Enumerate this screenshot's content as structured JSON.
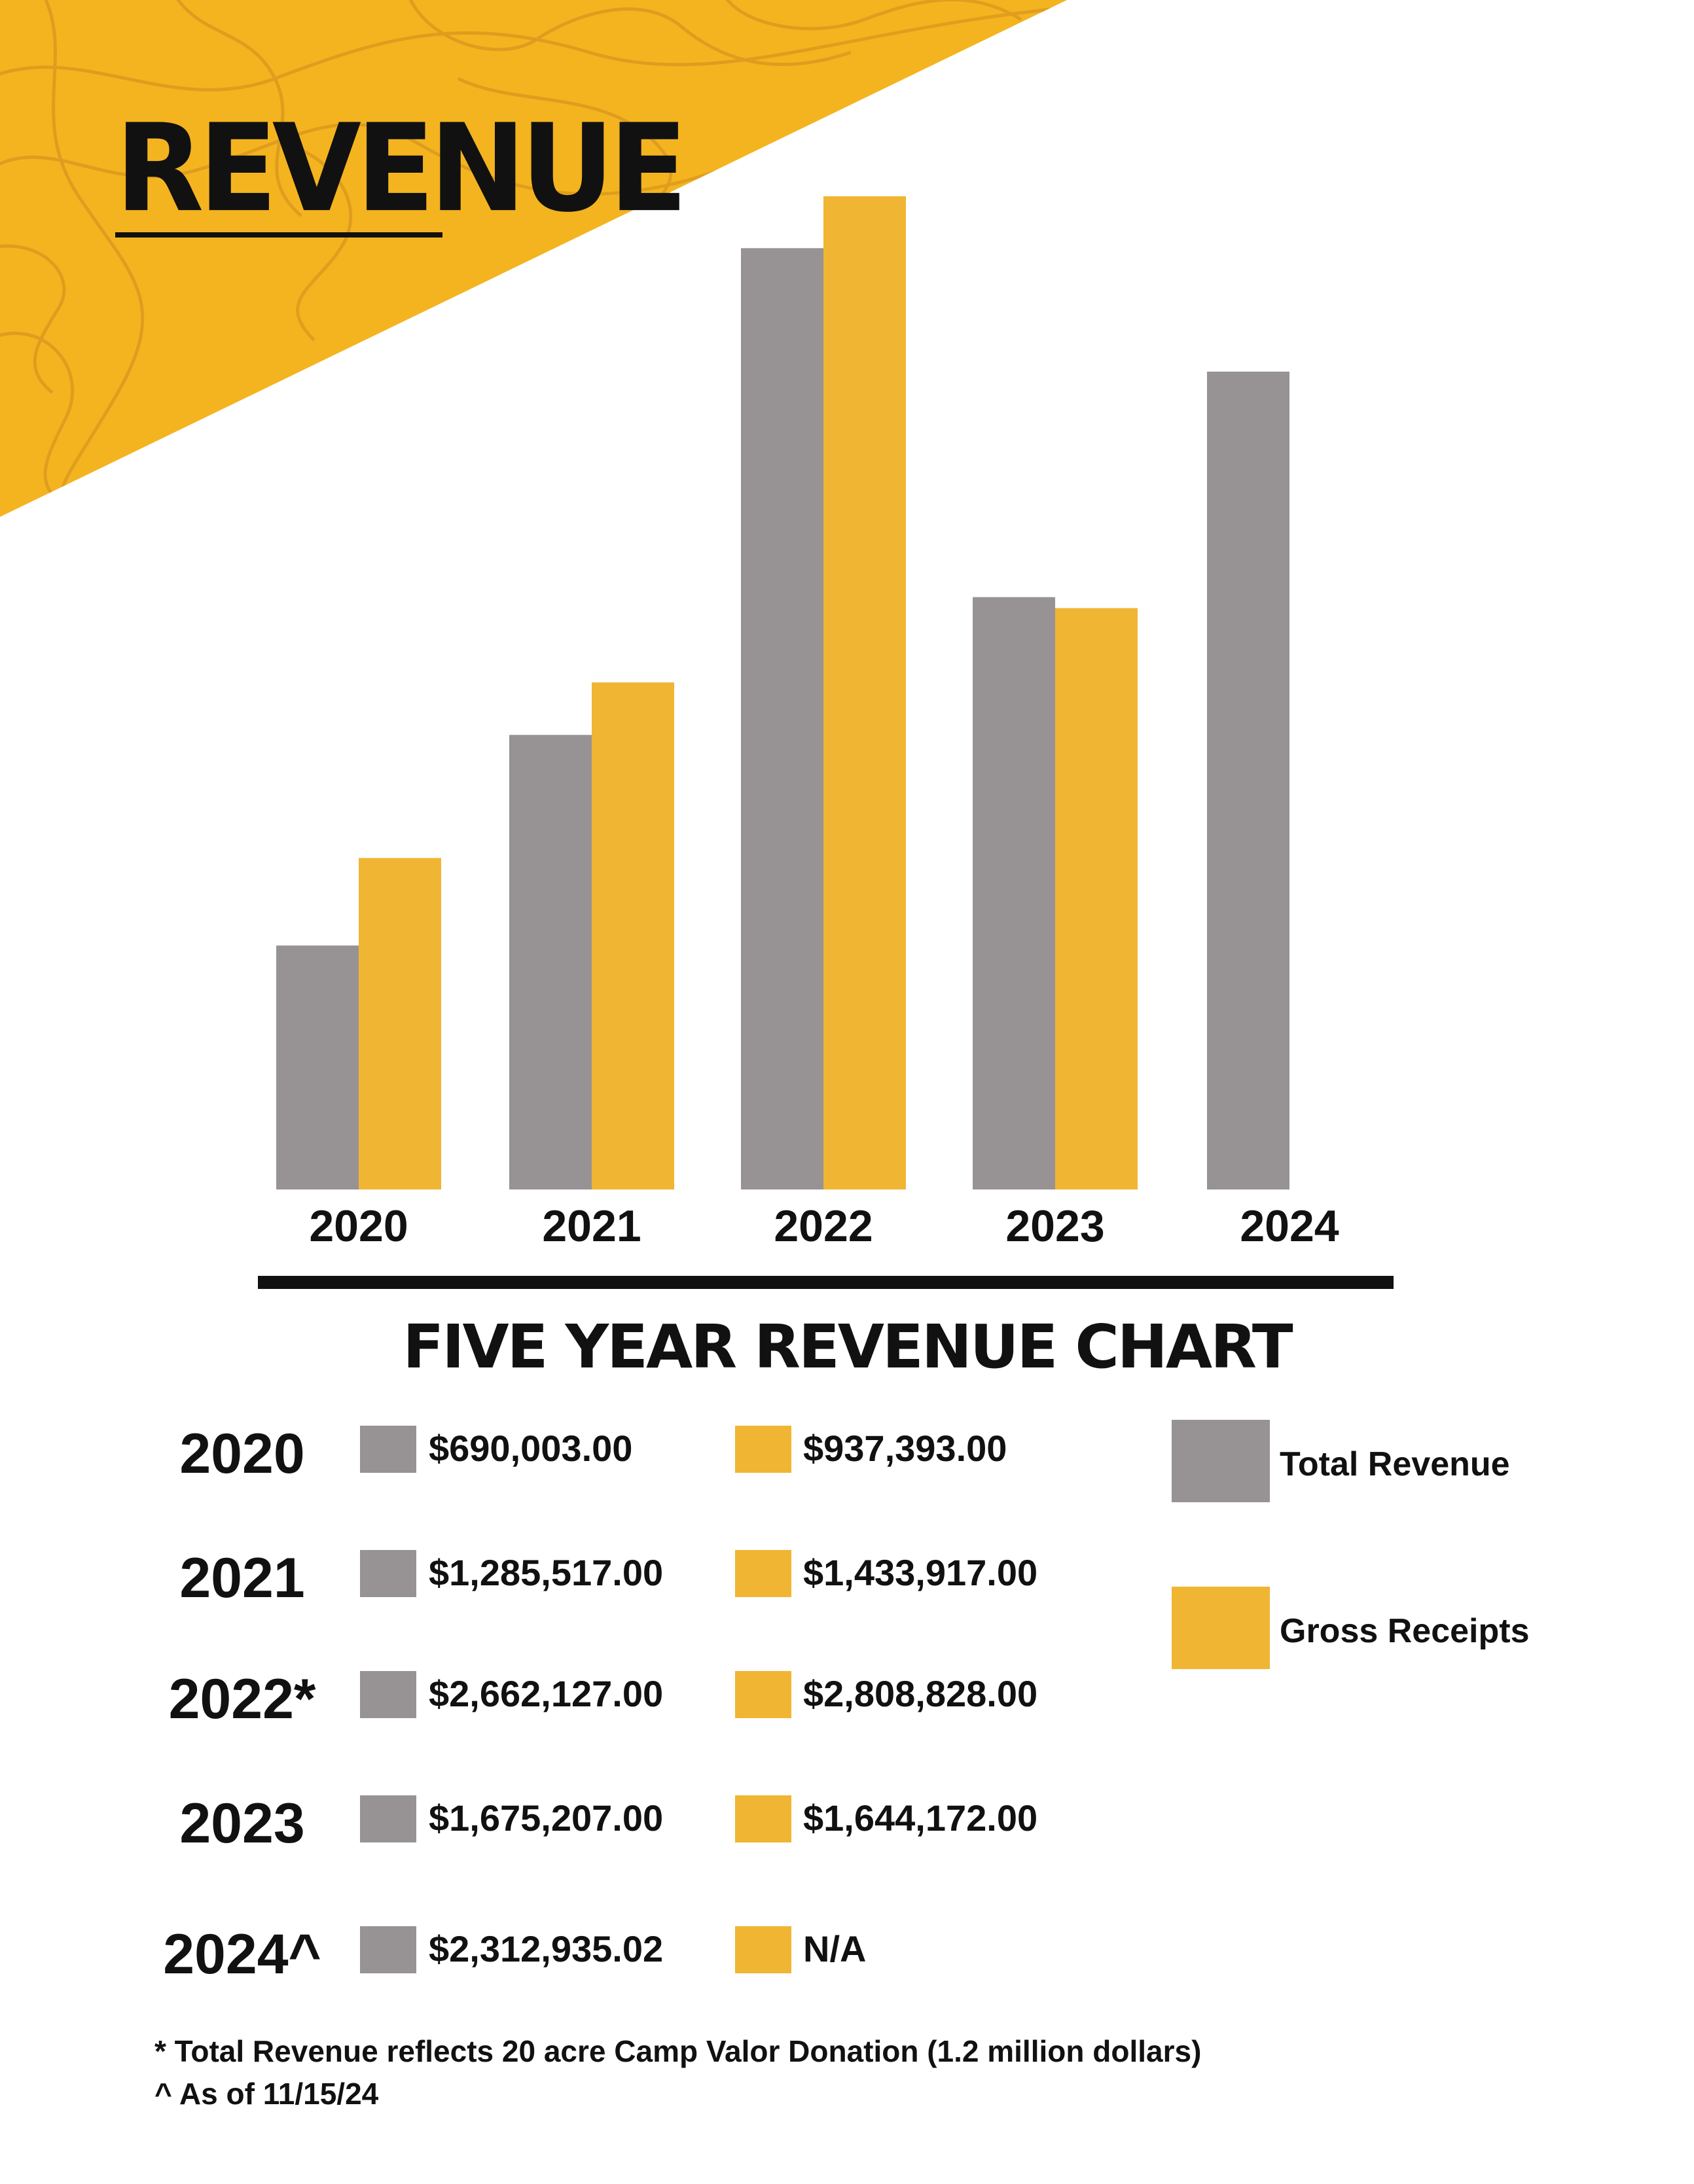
{
  "page": {
    "title": "REVENUE",
    "colors": {
      "accent": "#f4b41f",
      "contour": "#dc9a1f",
      "total": "#979394",
      "gross": "#f0b532",
      "text": "#111111"
    }
  },
  "chart_data": {
    "type": "bar",
    "title": "FIVE YEAR REVENUE CHART",
    "categories": [
      "2020",
      "2021",
      "2022",
      "2023",
      "2024"
    ],
    "series": [
      {
        "name": "Total Revenue",
        "color": "#979394",
        "values": [
          690003.0,
          1285517.0,
          2662127.0,
          1675207.0,
          2312935.02
        ]
      },
      {
        "name": "Gross Receipts",
        "color": "#f0b532",
        "values": [
          937393.0,
          1433917.0,
          2808828.0,
          1644172.0,
          null
        ]
      }
    ],
    "legend": "right",
    "grid": false
  },
  "table": {
    "rows": [
      {
        "year": "2020",
        "total": "$690,003.00",
        "gross": "$937,393.00"
      },
      {
        "year": "2021",
        "total": "$1,285,517.00",
        "gross": "$1,433,917.00"
      },
      {
        "year": "2022*",
        "total": "$2,662,127.00",
        "gross": "$2,808,828.00"
      },
      {
        "year": "2023",
        "total": "$1,675,207.00",
        "gross": "$1,644,172.00"
      },
      {
        "year": "2024^",
        "total": "$2,312,935.02",
        "gross": "N/A"
      }
    ]
  },
  "legend": {
    "items": [
      {
        "label": "Total Revenue",
        "color": "#979394"
      },
      {
        "label": "Gross Receipts",
        "color": "#f0b532"
      }
    ]
  },
  "footnotes": [
    "* Total Revenue reflects 20 acre Camp Valor Donation (1.2 million dollars)",
    "^ As of 11/15/24"
  ]
}
